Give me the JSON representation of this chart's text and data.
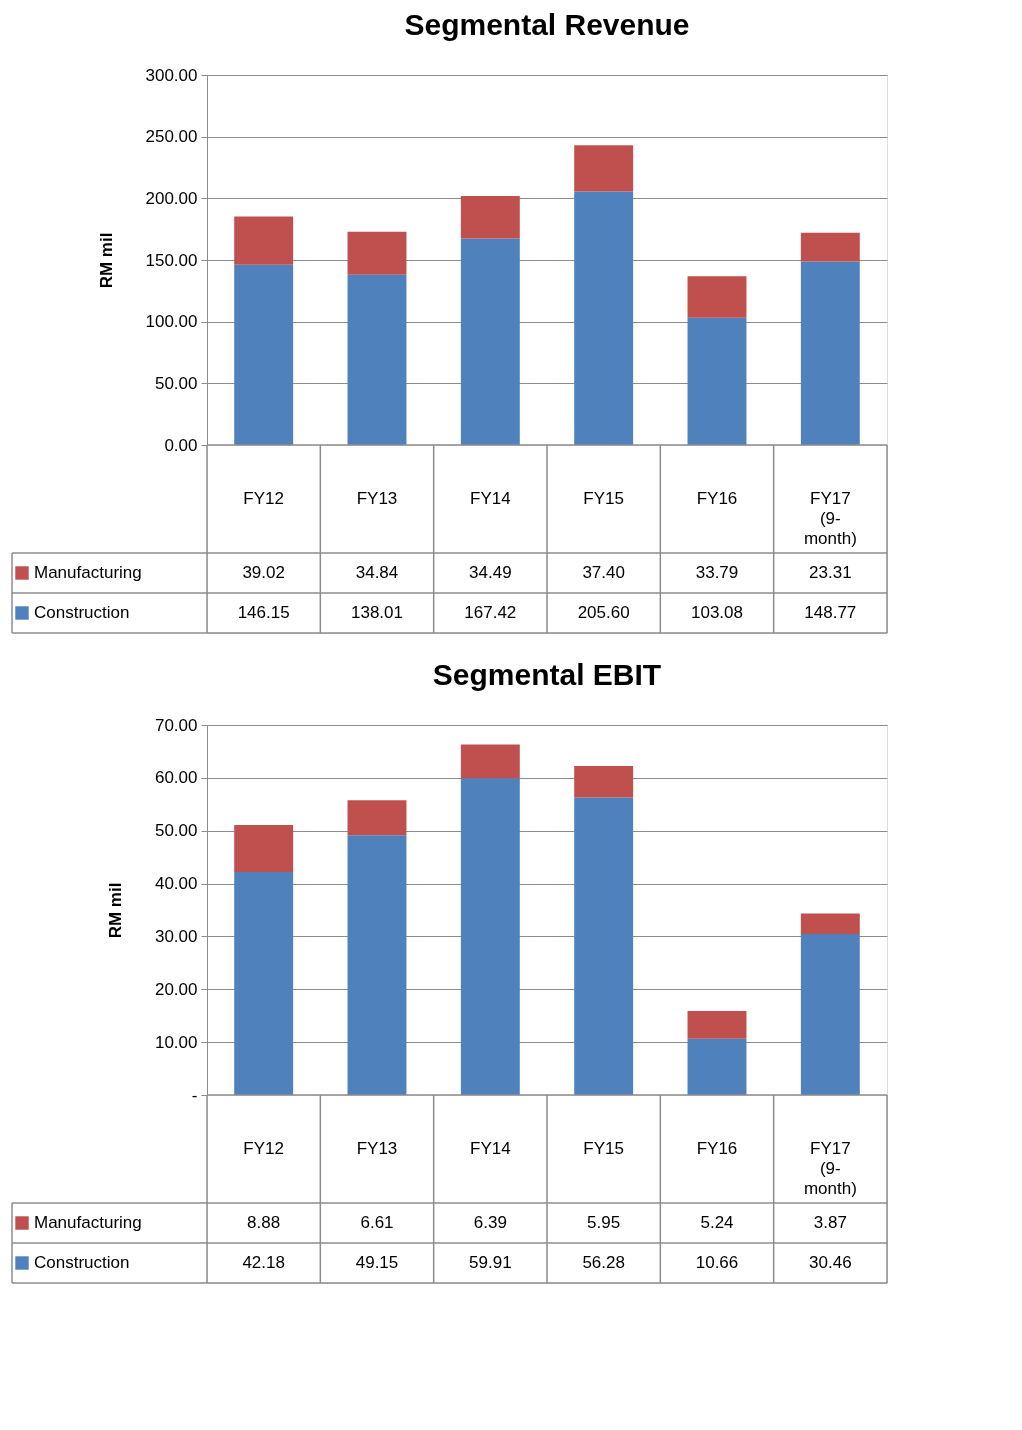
{
  "chart_data": [
    {
      "type": "bar",
      "title": "Segmental Revenue",
      "ylabel": "RM mil",
      "stacked": true,
      "grid": "y",
      "legend": "bottom left",
      "categories": [
        "FY12",
        "FY13",
        "FY14",
        "FY15",
        "FY16",
        "FY17 (9-month)"
      ],
      "ylim": [
        0,
        300
      ],
      "yticks": [
        {
          "value": 0,
          "label": "0.00"
        },
        {
          "value": 50,
          "label": "50.00"
        },
        {
          "value": 100,
          "label": "100.00"
        },
        {
          "value": 150,
          "label": "150.00"
        },
        {
          "value": 200,
          "label": "200.00"
        },
        {
          "value": 250,
          "label": "250.00"
        },
        {
          "value": 300,
          "label": "300.00"
        }
      ],
      "series": [
        {
          "name": "Construction",
          "color": "#4f81bd",
          "values": [
            146.15,
            138.01,
            167.42,
            205.6,
            103.08,
            148.77
          ],
          "value_labels": [
            "146.15",
            "138.01",
            "167.42",
            "205.60",
            "103.08",
            "148.77"
          ]
        },
        {
          "name": "Manufacturing",
          "color": "#c0504d",
          "values": [
            39.02,
            34.84,
            34.49,
            37.4,
            33.79,
            23.31
          ],
          "value_labels": [
            "39.02",
            "34.84",
            "34.49",
            "37.40",
            "33.79",
            "23.31"
          ]
        }
      ]
    },
    {
      "type": "bar",
      "title": "Segmental EBIT",
      "ylabel": "RM mil",
      "stacked": true,
      "grid": "y",
      "legend": "bottom left",
      "categories": [
        "FY12",
        "FY13",
        "FY14",
        "FY15",
        "FY16",
        "FY17 (9-month)"
      ],
      "ylim": [
        0,
        70
      ],
      "yticks": [
        {
          "value": 0,
          "label": "-"
        },
        {
          "value": 10,
          "label": "10.00"
        },
        {
          "value": 20,
          "label": "20.00"
        },
        {
          "value": 30,
          "label": "30.00"
        },
        {
          "value": 40,
          "label": "40.00"
        },
        {
          "value": 50,
          "label": "50.00"
        },
        {
          "value": 60,
          "label": "60.00"
        },
        {
          "value": 70,
          "label": "70.00"
        }
      ],
      "series": [
        {
          "name": "Construction",
          "color": "#4f81bd",
          "values": [
            42.18,
            49.15,
            59.91,
            56.28,
            10.66,
            30.46
          ],
          "value_labels": [
            "42.18",
            "49.15",
            "59.91",
            "56.28",
            "10.66",
            "30.46"
          ]
        },
        {
          "name": "Manufacturing",
          "color": "#c0504d",
          "values": [
            8.88,
            6.61,
            6.39,
            5.95,
            5.24,
            3.87
          ],
          "value_labels": [
            "8.88",
            "6.61",
            "6.39",
            "5.95",
            "5.24",
            "3.87"
          ]
        }
      ]
    }
  ]
}
